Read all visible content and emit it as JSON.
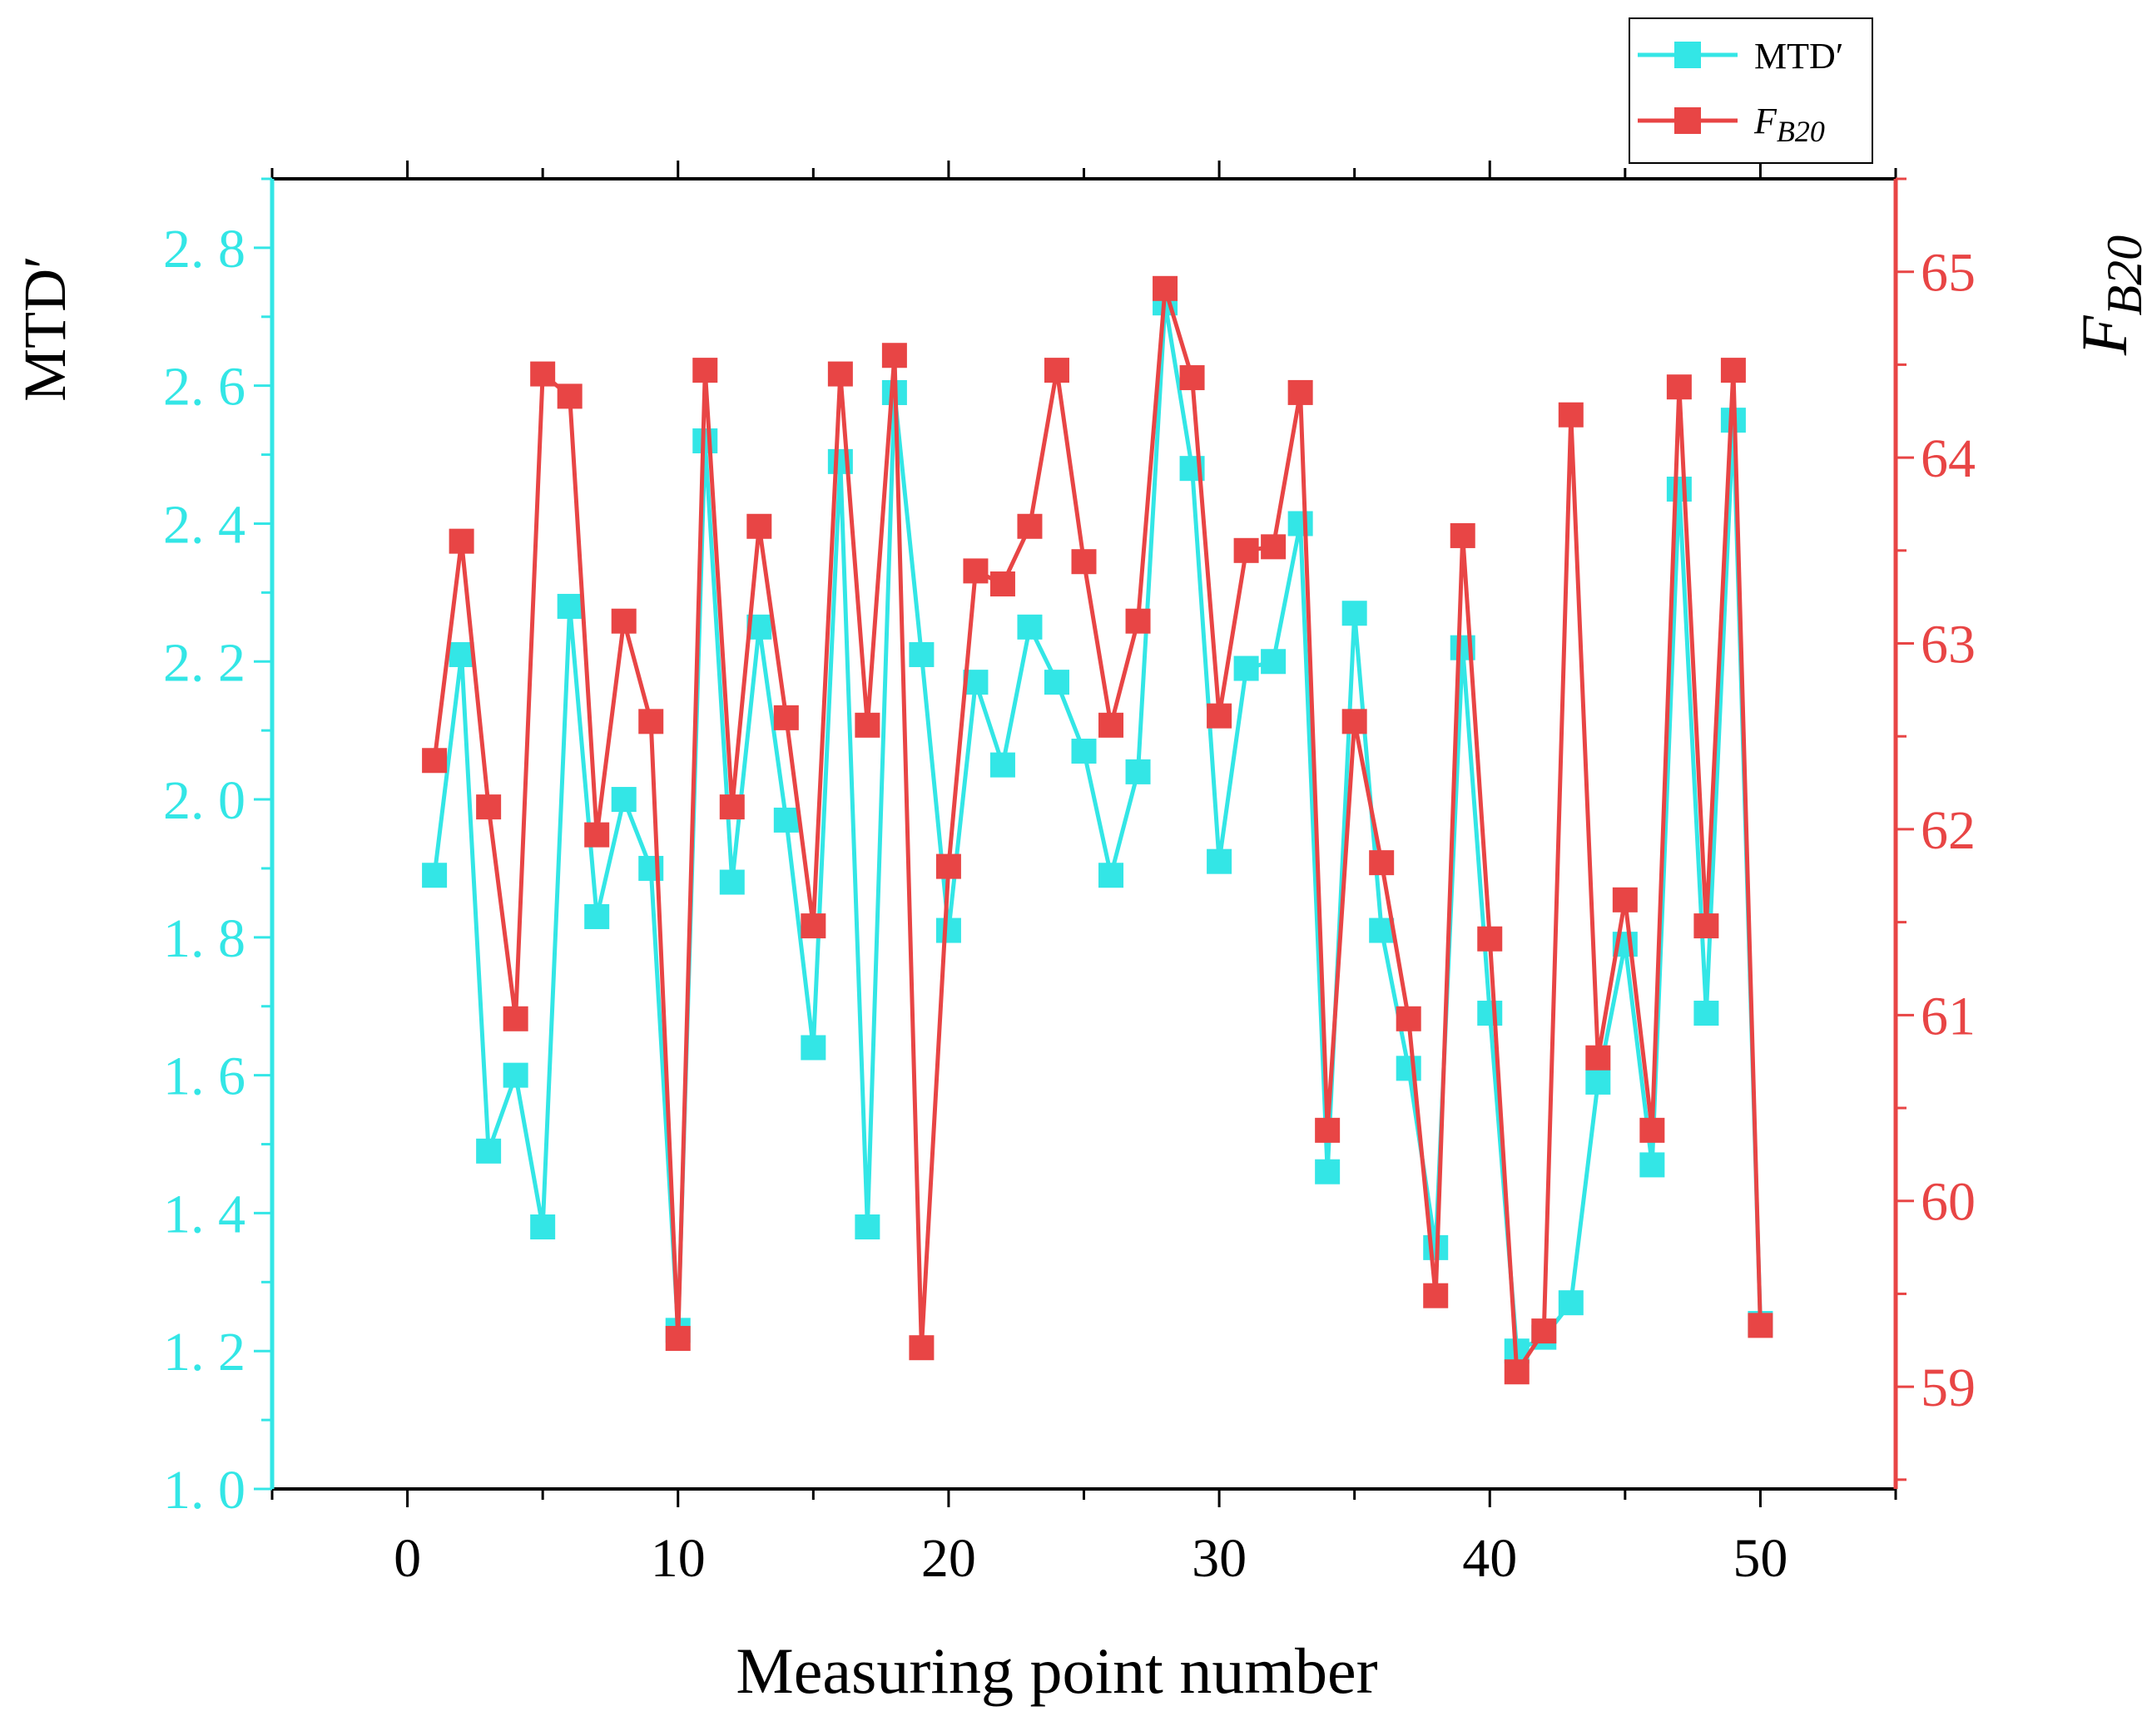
{
  "chart_data": {
    "type": "line",
    "xlabel": "Measuring point number",
    "ylabel_left": "MTD′",
    "ylabel_right": "F",
    "ylabel_right_sub": "B20",
    "xlim": [
      -5,
      55
    ],
    "xticks": [
      0,
      10,
      20,
      30,
      40,
      50
    ],
    "xtick_labels": [
      "0",
      "10",
      "20",
      "30",
      "40",
      "50"
    ],
    "ylim_left": [
      1.0,
      2.9
    ],
    "yticks_left": [
      1.0,
      1.2,
      1.4,
      1.6,
      1.8,
      2.0,
      2.2,
      2.4,
      2.6,
      2.8
    ],
    "ytick_labels_left": [
      "1. 0",
      "1. 2",
      "1. 4",
      "1. 6",
      "1. 8",
      "2. 0",
      "2. 2",
      "2. 4",
      "2. 6",
      "2. 8"
    ],
    "ylim_right": [
      58.45,
      65.5
    ],
    "yticks_right": [
      59,
      60,
      61,
      62,
      63,
      64,
      65
    ],
    "ytick_labels_right": [
      "59",
      "60",
      "61",
      "62",
      "63",
      "64",
      "65"
    ],
    "legend": {
      "position": "top-right",
      "entries": [
        {
          "label": "MTD′",
          "sub": ""
        },
        {
          "label": "F",
          "sub": "B20"
        }
      ]
    },
    "x": [
      1,
      2,
      3,
      4,
      5,
      6,
      7,
      8,
      9,
      10,
      11,
      12,
      13,
      14,
      15,
      16,
      17,
      18,
      19,
      20,
      21,
      22,
      23,
      24,
      25,
      26,
      27,
      28,
      29,
      30,
      31,
      32,
      33,
      34,
      35,
      36,
      37,
      38,
      39,
      40,
      41,
      42,
      43,
      44,
      45,
      46,
      47,
      48,
      49,
      50
    ],
    "series": [
      {
        "name": "MTD′",
        "axis": "left",
        "color": "#33e6e6",
        "values": [
          1.89,
          2.21,
          1.49,
          1.6,
          1.38,
          2.28,
          1.83,
          2.0,
          1.9,
          1.23,
          2.52,
          1.88,
          2.25,
          1.97,
          1.64,
          2.49,
          1.38,
          2.59,
          2.21,
          1.81,
          2.17,
          2.05,
          2.25,
          2.17,
          2.07,
          1.89,
          2.04,
          2.72,
          2.48,
          1.91,
          2.19,
          2.2,
          2.4,
          1.46,
          2.27,
          1.81,
          1.61,
          1.35,
          2.22,
          1.69,
          1.2,
          1.22,
          1.27,
          1.59,
          1.79,
          1.47,
          2.45,
          1.69,
          2.55,
          1.24
        ]
      },
      {
        "name": "F_B20",
        "axis": "right",
        "color": "#e84545",
        "values": [
          62.37,
          63.55,
          62.12,
          60.98,
          64.45,
          64.33,
          61.97,
          63.12,
          62.58,
          59.26,
          64.47,
          62.12,
          63.63,
          62.6,
          61.48,
          64.45,
          62.56,
          64.55,
          59.21,
          61.8,
          63.39,
          63.32,
          63.63,
          64.47,
          63.44,
          62.56,
          63.12,
          64.91,
          64.43,
          62.61,
          63.5,
          63.52,
          64.35,
          60.38,
          62.58,
          61.82,
          60.98,
          59.49,
          63.58,
          61.41,
          59.08,
          59.3,
          64.23,
          60.77,
          61.62,
          60.38,
          64.38,
          61.48,
          64.47,
          59.33
        ]
      }
    ]
  }
}
